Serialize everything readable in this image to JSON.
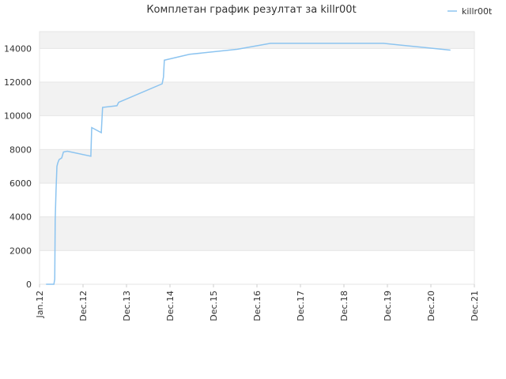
{
  "chart_data": {
    "type": "line",
    "title": "Комплетан график резултат за killr00t",
    "series": [
      {
        "name": "killr00t",
        "color": "#8cc4f0",
        "x": [
          2012.15,
          2012.33,
          2012.35,
          2012.36,
          2012.38,
          2012.4,
          2012.42,
          2012.45,
          2012.51,
          2012.55,
          2012.64,
          2013.18,
          2013.2,
          2013.42,
          2013.45,
          2013.78,
          2013.82,
          2014.82,
          2014.85,
          2014.87,
          2015.45,
          2016.55,
          2017.31,
          2019.91,
          2021.45
        ],
        "values": [
          0,
          0,
          300,
          3800,
          5600,
          7000,
          7200,
          7400,
          7500,
          7850,
          7900,
          7600,
          9300,
          9000,
          10500,
          10600,
          10800,
          11900,
          12300,
          13300,
          13650,
          13950,
          14300,
          14300,
          13900
        ]
      }
    ],
    "xlim": [
      2012,
      2022
    ],
    "xticks": [
      {
        "value": 2012,
        "label": "Jan.12"
      },
      {
        "value": 2013,
        "label": "Dec.12"
      },
      {
        "value": 2014,
        "label": "Dec.13"
      },
      {
        "value": 2015,
        "label": "Dec.14"
      },
      {
        "value": 2016,
        "label": "Dec.15"
      },
      {
        "value": 2017,
        "label": "Dec.16"
      },
      {
        "value": 2018,
        "label": "Dec.17"
      },
      {
        "value": 2019,
        "label": "Dec.18"
      },
      {
        "value": 2020,
        "label": "Dec.19"
      },
      {
        "value": 2021,
        "label": "Dec.20"
      },
      {
        "value": 2022,
        "label": "Dec.21"
      }
    ],
    "ylim": [
      0,
      15000
    ],
    "yticks": [
      0,
      2000,
      4000,
      6000,
      8000,
      10000,
      12000,
      14000
    ],
    "grid": true,
    "legend": "top-right"
  }
}
